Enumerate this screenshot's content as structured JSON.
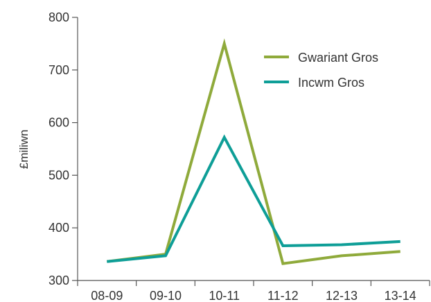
{
  "chart_data": {
    "type": "line",
    "categories": [
      "08-09",
      "09-10",
      "10-11",
      "11-12",
      "12-13",
      "13-14"
    ],
    "series": [
      {
        "name": "Gwariant Gros",
        "color": "#8faa3b",
        "values": [
          336,
          350,
          750,
          332,
          347,
          355
        ]
      },
      {
        "name": "Incwm Gros",
        "color": "#0e9e97",
        "values": [
          336,
          347,
          572,
          366,
          368,
          374
        ]
      }
    ],
    "ylabel": "£miliwn",
    "xlabel": "",
    "ylim": [
      300,
      800
    ],
    "yticks": [
      300,
      400,
      500,
      600,
      700,
      800
    ],
    "grid": false,
    "legend_position": "top-right"
  }
}
